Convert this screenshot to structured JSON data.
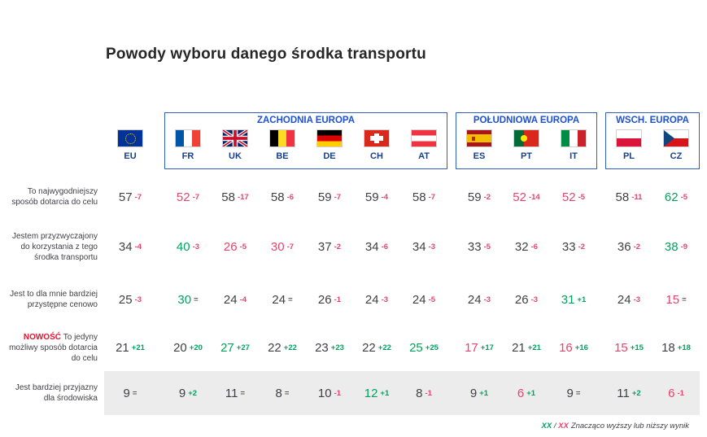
{
  "chart_data": {
    "type": "table",
    "title": "Powody wyboru danego środka transportu",
    "column_groups": [
      {
        "label": "",
        "columns": [
          {
            "code": "EU",
            "flag": "eu"
          }
        ]
      },
      {
        "label": "ZACHODNIA EUROPA",
        "columns": [
          {
            "code": "FR",
            "flag": "fr"
          },
          {
            "code": "UK",
            "flag": "uk"
          },
          {
            "code": "BE",
            "flag": "be"
          },
          {
            "code": "DE",
            "flag": "de"
          },
          {
            "code": "CH",
            "flag": "ch"
          },
          {
            "code": "AT",
            "flag": "at"
          }
        ]
      },
      {
        "label": "POŁUDNIOWA EUROPA",
        "columns": [
          {
            "code": "ES",
            "flag": "es"
          },
          {
            "code": "PT",
            "flag": "pt"
          },
          {
            "code": "IT",
            "flag": "it"
          }
        ]
      },
      {
        "label": "WSCH. EUROPA",
        "columns": [
          {
            "code": "PL",
            "flag": "pl"
          },
          {
            "code": "CZ",
            "flag": "cz"
          }
        ]
      }
    ],
    "rows": [
      {
        "label": "To najwygodniejszy sposób dotarcia do celu",
        "prefix": "",
        "shaded": false,
        "cells": [
          {
            "v": 57,
            "d": "-7",
            "hl": ""
          },
          {
            "v": 52,
            "d": "-7",
            "hl": "low"
          },
          {
            "v": 58,
            "d": "-17",
            "hl": ""
          },
          {
            "v": 58,
            "d": "-6",
            "hl": ""
          },
          {
            "v": 59,
            "d": "-7",
            "hl": ""
          },
          {
            "v": 59,
            "d": "-4",
            "hl": ""
          },
          {
            "v": 58,
            "d": "-7",
            "hl": ""
          },
          {
            "v": 59,
            "d": "-2",
            "hl": ""
          },
          {
            "v": 52,
            "d": "-14",
            "hl": "low"
          },
          {
            "v": 52,
            "d": "-5",
            "hl": "low"
          },
          {
            "v": 58,
            "d": "-11",
            "hl": ""
          },
          {
            "v": 62,
            "d": "-5",
            "hl": "high"
          }
        ]
      },
      {
        "label": "Jestem przyzwyczajony do korzystania z tego środka transportu",
        "prefix": "",
        "shaded": false,
        "cells": [
          {
            "v": 34,
            "d": "-4",
            "hl": ""
          },
          {
            "v": 40,
            "d": "-3",
            "hl": "high"
          },
          {
            "v": 26,
            "d": "-5",
            "hl": "low"
          },
          {
            "v": 30,
            "d": "-7",
            "hl": "low"
          },
          {
            "v": 37,
            "d": "-2",
            "hl": ""
          },
          {
            "v": 34,
            "d": "-6",
            "hl": ""
          },
          {
            "v": 34,
            "d": "-3",
            "hl": ""
          },
          {
            "v": 33,
            "d": "-5",
            "hl": ""
          },
          {
            "v": 32,
            "d": "-6",
            "hl": ""
          },
          {
            "v": 33,
            "d": "-2",
            "hl": ""
          },
          {
            "v": 36,
            "d": "-2",
            "hl": ""
          },
          {
            "v": 38,
            "d": "-9",
            "hl": "high"
          }
        ]
      },
      {
        "label": "Jest to dla mnie bardziej przystępne cenowo",
        "prefix": "",
        "shaded": false,
        "cells": [
          {
            "v": 25,
            "d": "-3",
            "hl": ""
          },
          {
            "v": 30,
            "d": "=",
            "hl": "high"
          },
          {
            "v": 24,
            "d": "-4",
            "hl": ""
          },
          {
            "v": 24,
            "d": "=",
            "hl": ""
          },
          {
            "v": 26,
            "d": "-1",
            "hl": ""
          },
          {
            "v": 24,
            "d": "-3",
            "hl": ""
          },
          {
            "v": 24,
            "d": "-5",
            "hl": ""
          },
          {
            "v": 24,
            "d": "-3",
            "hl": ""
          },
          {
            "v": 26,
            "d": "-3",
            "hl": ""
          },
          {
            "v": 31,
            "d": "+1",
            "hl": "high"
          },
          {
            "v": 24,
            "d": "-3",
            "hl": ""
          },
          {
            "v": 15,
            "d": "=",
            "hl": "low"
          }
        ]
      },
      {
        "label": "To jedyny możliwy sposób dotarcia do celu",
        "prefix": "NOWOŚĆ",
        "shaded": false,
        "cells": [
          {
            "v": 21,
            "d": "+21",
            "hl": ""
          },
          {
            "v": 20,
            "d": "+20",
            "hl": ""
          },
          {
            "v": 27,
            "d": "+27",
            "hl": "high"
          },
          {
            "v": 22,
            "d": "+22",
            "hl": ""
          },
          {
            "v": 23,
            "d": "+23",
            "hl": ""
          },
          {
            "v": 22,
            "d": "+22",
            "hl": ""
          },
          {
            "v": 25,
            "d": "+25",
            "hl": "high"
          },
          {
            "v": 17,
            "d": "+17",
            "hl": "low"
          },
          {
            "v": 21,
            "d": "+21",
            "hl": ""
          },
          {
            "v": 16,
            "d": "+16",
            "hl": "low"
          },
          {
            "v": 15,
            "d": "+15",
            "hl": "low"
          },
          {
            "v": 18,
            "d": "+18",
            "hl": ""
          }
        ]
      },
      {
        "label": "Jest bardziej przyjazny dla środowiska",
        "prefix": "",
        "shaded": true,
        "cells": [
          {
            "v": 9,
            "d": "=",
            "hl": ""
          },
          {
            "v": 9,
            "d": "+2",
            "hl": ""
          },
          {
            "v": 11,
            "d": "=",
            "hl": ""
          },
          {
            "v": 8,
            "d": "=",
            "hl": ""
          },
          {
            "v": 10,
            "d": "-1",
            "hl": ""
          },
          {
            "v": 12,
            "d": "+1",
            "hl": "high"
          },
          {
            "v": 8,
            "d": "-1",
            "hl": ""
          },
          {
            "v": 9,
            "d": "+1",
            "hl": ""
          },
          {
            "v": 6,
            "d": "+1",
            "hl": "low"
          },
          {
            "v": 9,
            "d": "=",
            "hl": ""
          },
          {
            "v": 11,
            "d": "+2",
            "hl": ""
          },
          {
            "v": 6,
            "d": "-1",
            "hl": "low"
          }
        ]
      }
    ],
    "legend_position": "bottom-right",
    "grid": "off"
  },
  "legend": {
    "high_mark": "XX",
    "separator": " / ",
    "low_mark": "XX",
    "text": "Znacząco wyższy lub niższy wynik"
  },
  "colors": {
    "significant_high": "#00A35D",
    "significant_low": "#E8446B",
    "delta_positive": "#00A35D",
    "delta_negative": "#E8446B",
    "delta_equal": "#595959",
    "group_title_blue": "#1B50D8",
    "group_border_blue": "#2F5FC4",
    "country_code_navy": "#17408B",
    "new_badge_red": "#E8112D",
    "body_text": "#3F3F46",
    "shaded_row": "#ECECEC"
  }
}
